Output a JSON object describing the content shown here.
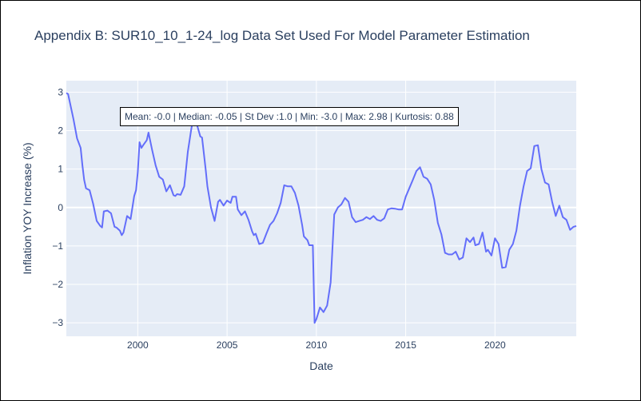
{
  "chart_data": {
    "type": "line",
    "title": "Appendix B: SUR10_10_1-24_log Data Set Used For Model Parameter Estimation",
    "xlabel": "Date",
    "ylabel": "Inflation YOY Increase (%)",
    "annotation": "Mean: -0.0 | Median: -0.05 | St Dev :1.0 | Min: -3.0 | Max: 2.98 | Kurtosis: 0.88",
    "xlim": [
      1996.0,
      2024.55
    ],
    "ylim": [
      -3.35,
      3.3
    ],
    "x_ticks": [
      2000,
      2005,
      2010,
      2015,
      2020
    ],
    "x_tick_labels": [
      "2000",
      "2005",
      "2010",
      "2015",
      "2020"
    ],
    "y_ticks": [
      -3,
      -2,
      -1,
      0,
      1,
      2,
      3
    ],
    "y_tick_labels": [
      "−3",
      "−2",
      "−1",
      "0",
      "1",
      "2",
      "3"
    ],
    "grid": true,
    "series": [
      {
        "color": "#636efa",
        "x": [
          1996.0,
          1996.1,
          1996.4,
          1996.6,
          1996.8,
          1996.9,
          1997.0,
          1997.1,
          1997.3,
          1997.5,
          1997.7,
          1997.9,
          1998.0,
          1998.1,
          1998.3,
          1998.5,
          1998.7,
          1998.8,
          1999.0,
          1999.1,
          1999.2,
          1999.4,
          1999.6,
          1999.8,
          1999.9,
          2000.0,
          2000.1,
          2000.2,
          2000.3,
          2000.5,
          2000.6,
          2000.8,
          2001.0,
          2001.2,
          2001.4,
          2001.6,
          2001.7,
          2001.8,
          2002.0,
          2002.1,
          2002.2,
          2002.4,
          2002.6,
          2002.8,
          2003.0,
          2003.1,
          2003.3,
          2003.5,
          2003.6,
          2003.8,
          2003.9,
          2004.1,
          2004.3,
          2004.5,
          2004.6,
          2004.8,
          2005.0,
          2005.2,
          2005.3,
          2005.5,
          2005.6,
          2005.8,
          2006.0,
          2006.2,
          2006.4,
          2006.5,
          2006.6,
          2006.8,
          2007.0,
          2007.2,
          2007.4,
          2007.6,
          2007.8,
          2008.0,
          2008.2,
          2008.4,
          2008.6,
          2008.8,
          2009.0,
          2009.2,
          2009.3,
          2009.5,
          2009.6,
          2009.8,
          2009.9,
          2010.0,
          2010.2,
          2010.4,
          2010.6,
          2010.8,
          2011.0,
          2011.2,
          2011.4,
          2011.6,
          2011.8,
          2012.0,
          2012.2,
          2012.4,
          2012.6,
          2012.8,
          2013.0,
          2013.2,
          2013.4,
          2013.6,
          2013.8,
          2014.0,
          2014.2,
          2014.4,
          2014.6,
          2014.8,
          2015.0,
          2015.2,
          2015.4,
          2015.6,
          2015.8,
          2016.0,
          2016.2,
          2016.4,
          2016.6,
          2016.8,
          2017.0,
          2017.2,
          2017.4,
          2017.6,
          2017.8,
          2018.0,
          2018.2,
          2018.4,
          2018.6,
          2018.8,
          2018.9,
          2019.1,
          2019.3,
          2019.5,
          2019.6,
          2019.8,
          2020.0,
          2020.2,
          2020.4,
          2020.6,
          2020.8,
          2021.0,
          2021.2,
          2021.4,
          2021.6,
          2021.8,
          2022.0,
          2022.2,
          2022.4,
          2022.6,
          2022.8,
          2023.0,
          2023.2,
          2023.4,
          2023.6,
          2023.8,
          2024.0,
          2024.2,
          2024.4,
          2024.55
        ],
        "y": [
          2.98,
          2.95,
          2.3,
          1.8,
          1.55,
          1.1,
          0.72,
          0.5,
          0.45,
          0.1,
          -0.35,
          -0.48,
          -0.52,
          -0.1,
          -0.08,
          -0.15,
          -0.5,
          -0.52,
          -0.6,
          -0.72,
          -0.65,
          -0.22,
          -0.3,
          0.3,
          0.45,
          0.92,
          1.7,
          1.55,
          1.62,
          1.75,
          1.95,
          1.5,
          1.1,
          0.8,
          0.73,
          0.42,
          0.5,
          0.58,
          0.32,
          0.3,
          0.35,
          0.33,
          0.55,
          1.45,
          2.05,
          2.32,
          2.18,
          1.85,
          1.82,
          1.0,
          0.55,
          0.0,
          -0.35,
          0.15,
          0.2,
          0.05,
          0.18,
          0.12,
          0.28,
          0.28,
          -0.05,
          -0.2,
          -0.1,
          -0.32,
          -0.62,
          -0.72,
          -0.68,
          -0.95,
          -0.92,
          -0.68,
          -0.45,
          -0.35,
          -0.15,
          0.12,
          0.58,
          0.55,
          0.55,
          0.38,
          0.05,
          -0.45,
          -0.75,
          -0.85,
          -0.98,
          -0.98,
          -3.0,
          -2.9,
          -2.6,
          -2.72,
          -2.55,
          -1.95,
          -0.18,
          0.0,
          0.08,
          0.25,
          0.15,
          -0.25,
          -0.38,
          -0.35,
          -0.32,
          -0.25,
          -0.3,
          -0.22,
          -0.32,
          -0.35,
          -0.28,
          -0.05,
          -0.02,
          -0.03,
          -0.05,
          -0.05,
          0.28,
          0.5,
          0.72,
          0.95,
          1.05,
          0.8,
          0.75,
          0.6,
          0.2,
          -0.4,
          -0.7,
          -1.18,
          -1.22,
          -1.22,
          -1.15,
          -1.35,
          -1.3,
          -0.8,
          -0.9,
          -0.78,
          -0.98,
          -0.95,
          -0.65,
          -1.15,
          -1.1,
          -1.25,
          -0.8,
          -0.95,
          -1.57,
          -1.55,
          -1.1,
          -0.95,
          -0.6,
          0.05,
          0.55,
          0.95,
          1.02,
          1.6,
          1.62,
          1.0,
          0.65,
          0.6,
          0.15,
          -0.22,
          0.05,
          -0.25,
          -0.32,
          -0.58,
          -0.5,
          -0.48
        ]
      }
    ]
  }
}
